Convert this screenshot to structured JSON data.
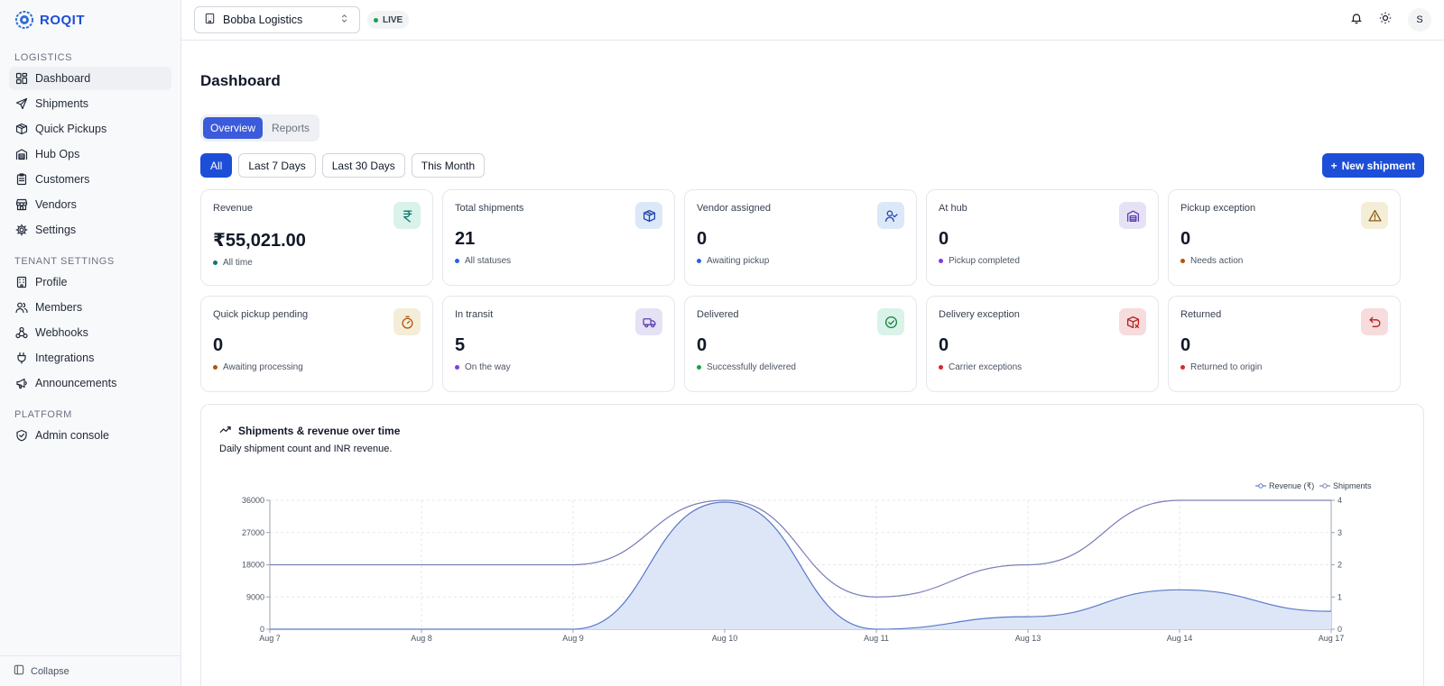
{
  "brand": {
    "name": "ROQIT"
  },
  "sidebar": {
    "sections": [
      {
        "title": "LOGISTICS",
        "items": [
          {
            "label": "Dashboard",
            "icon": "dashboard-icon",
            "active": true
          },
          {
            "label": "Shipments",
            "icon": "send-icon"
          },
          {
            "label": "Quick Pickups",
            "icon": "box-icon"
          },
          {
            "label": "Hub Ops",
            "icon": "warehouse-icon"
          },
          {
            "label": "Customers",
            "icon": "clipboard-icon"
          },
          {
            "label": "Vendors",
            "icon": "store-icon"
          },
          {
            "label": "Settings",
            "icon": "gear-icon"
          }
        ]
      },
      {
        "title": "TENANT SETTINGS",
        "items": [
          {
            "label": "Profile",
            "icon": "building-icon"
          },
          {
            "label": "Members",
            "icon": "users-icon"
          },
          {
            "label": "Webhooks",
            "icon": "webhook-icon"
          },
          {
            "label": "Integrations",
            "icon": "plug-icon"
          },
          {
            "label": "Announcements",
            "icon": "megaphone-icon"
          }
        ]
      },
      {
        "title": "PLATFORM",
        "items": [
          {
            "label": "Admin console",
            "icon": "shield-icon"
          }
        ]
      }
    ],
    "collapse_label": "Collapse"
  },
  "topbar": {
    "tenant": "Bobba Logistics",
    "live_label": "LIVE",
    "avatar_initial": "S"
  },
  "page": {
    "title": "Dashboard",
    "tabs": [
      {
        "label": "Overview",
        "active": true
      },
      {
        "label": "Reports",
        "active": false
      }
    ],
    "filters": [
      {
        "label": "All",
        "active": true
      },
      {
        "label": "Last 7 Days",
        "active": false
      },
      {
        "label": "Last 30 Days",
        "active": false
      },
      {
        "label": "This Month",
        "active": false
      }
    ],
    "new_shipment_label": "New shipment"
  },
  "cards": [
    {
      "label": "Revenue",
      "value": "₹55,021.00",
      "sub": "All time",
      "dot": "#0f766e",
      "icon": "rupee-icon",
      "bg": "#d9f2ea",
      "fg": "#0f766e"
    },
    {
      "label": "Total shipments",
      "value": "21",
      "sub": "All statuses",
      "dot": "#2563eb",
      "icon": "package-icon",
      "bg": "#dbe8f7",
      "fg": "#1e40af"
    },
    {
      "label": "Vendor assigned",
      "value": "0",
      "sub": "Awaiting pickup",
      "dot": "#2563eb",
      "icon": "user-check-icon",
      "bg": "#dbe8f7",
      "fg": "#1e40af"
    },
    {
      "label": "At hub",
      "value": "0",
      "sub": "Pickup completed",
      "dot": "#7c3aed",
      "icon": "warehouse-icon",
      "bg": "#e6e2f5",
      "fg": "#5b3fb0"
    },
    {
      "label": "Pickup exception",
      "value": "0",
      "sub": "Needs action",
      "dot": "#b45309",
      "icon": "warning-icon",
      "bg": "#f4edd8",
      "fg": "#8a5a0a"
    },
    {
      "label": "Quick pickup pending",
      "value": "0",
      "sub": "Awaiting processing",
      "dot": "#b45309",
      "icon": "timer-icon",
      "bg": "#f4edd8",
      "fg": "#b45309"
    },
    {
      "label": "In transit",
      "value": "5",
      "sub": "On the way",
      "dot": "#7c3aed",
      "icon": "truck-icon",
      "bg": "#e6e2f5",
      "fg": "#5b3fb0"
    },
    {
      "label": "Delivered",
      "value": "0",
      "sub": "Successfully delivered",
      "dot": "#16a34a",
      "icon": "check-circle-icon",
      "bg": "#d9f2ea",
      "fg": "#15803d"
    },
    {
      "label": "Delivery exception",
      "value": "0",
      "sub": "Carrier exceptions",
      "dot": "#dc2626",
      "icon": "package-x-icon",
      "bg": "#f6dcdc",
      "fg": "#b91c1c"
    },
    {
      "label": "Returned",
      "value": "0",
      "sub": "Returned to origin",
      "dot": "#dc2626",
      "icon": "undo-icon",
      "bg": "#f6dcdc",
      "fg": "#b91c1c"
    }
  ],
  "chart": {
    "title": "Shipments & revenue over time",
    "description": "Daily shipment count and INR revenue."
  },
  "chart_data": {
    "type": "area",
    "x": [
      "Aug 7",
      "Aug 8",
      "Aug 9",
      "Aug 10",
      "Aug 11",
      "Aug 13",
      "Aug 14",
      "Aug 17"
    ],
    "series": [
      {
        "name": "Revenue (₹)",
        "axis": "left",
        "values": [
          0,
          0,
          0,
          35500,
          0,
          3500,
          11000,
          5000
        ],
        "color": "#5b79c9",
        "fill": "#dde6f7"
      },
      {
        "name": "Shipments",
        "axis": "right",
        "values": [
          2,
          2,
          2,
          4,
          1,
          2,
          4,
          4
        ],
        "color": "#7a7fb8"
      }
    ],
    "yleft": {
      "ticks": [
        "0",
        "9000",
        "18000",
        "27000",
        "36000"
      ],
      "lim": [
        0,
        36000
      ]
    },
    "yright": {
      "ticks": [
        "0",
        "1",
        "2",
        "3",
        "4"
      ],
      "lim": [
        0,
        4
      ]
    },
    "legend": "top-right",
    "grid": true
  }
}
